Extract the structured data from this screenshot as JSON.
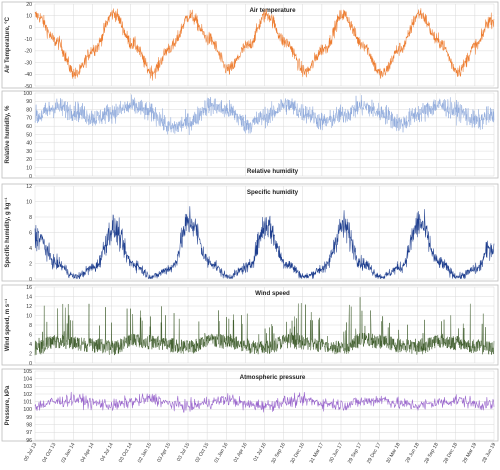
{
  "chart_data": [
    {
      "type": "line",
      "title": "Air temperature",
      "ylabel": "Air Temperature, °C",
      "ylim": [
        -50,
        20
      ],
      "yticks": [
        -50,
        -40,
        -30,
        -20,
        -10,
        0,
        10,
        20
      ],
      "grid": true,
      "color": "#ed7d31",
      "x_range": [
        "2013-07-05",
        "2019-07-05"
      ],
      "series": [
        {
          "x": [
            "2013-07",
            "2013-10",
            "2014-01",
            "2014-04",
            "2014-07",
            "2014-10",
            "2015-01",
            "2015-04",
            "2015-07",
            "2015-10",
            "2016-01",
            "2016-04",
            "2016-07",
            "2016-10",
            "2017-01",
            "2017-04",
            "2017-07",
            "2017-10",
            "2018-01",
            "2018-04",
            "2018-07",
            "2018-10",
            "2019-01",
            "2019-04",
            "2019-06"
          ],
          "values": [
            10,
            -12,
            -40,
            -18,
            12,
            -14,
            -38,
            -17,
            10,
            -10,
            -36,
            -16,
            11,
            -13,
            -38,
            -18,
            11,
            -14,
            -40,
            -18,
            12,
            -12,
            -37,
            -15,
            6
          ]
        }
      ]
    },
    {
      "type": "line",
      "title": "Relative humidity",
      "ylabel": "Relative humidity, %",
      "ylim": [
        0,
        100
      ],
      "yticks": [
        0,
        10,
        20,
        30,
        40,
        50,
        60,
        70,
        80,
        90,
        100
      ],
      "grid": true,
      "color": "#8faadc",
      "x_range": [
        "2013-07-05",
        "2019-07-05"
      ],
      "series": [
        {
          "x": [
            "2013-07",
            "2013-10",
            "2014-01",
            "2014-04",
            "2014-07",
            "2014-10",
            "2015-01",
            "2015-04",
            "2015-07",
            "2015-10",
            "2016-01",
            "2016-04",
            "2016-07",
            "2016-10",
            "2017-01",
            "2017-04",
            "2017-07",
            "2017-10",
            "2018-01",
            "2018-04",
            "2018-07",
            "2018-10",
            "2019-01",
            "2019-04",
            "2019-06"
          ],
          "values": [
            72,
            83,
            78,
            70,
            77,
            84,
            76,
            58,
            65,
            85,
            79,
            62,
            72,
            86,
            76,
            65,
            74,
            84,
            76,
            63,
            76,
            85,
            78,
            66,
            72
          ]
        }
      ]
    },
    {
      "type": "line",
      "title": "Specific humidity",
      "ylabel": "Specific humidity, g kg⁻¹",
      "ylim": [
        0,
        12
      ],
      "yticks": [
        0,
        2,
        4,
        6,
        8,
        10,
        12
      ],
      "grid": true,
      "color": "#1f3f8f",
      "x_range": [
        "2013-07-05",
        "2019-07-05"
      ],
      "series": [
        {
          "x": [
            "2013-07",
            "2013-10",
            "2014-01",
            "2014-04",
            "2014-07",
            "2014-10",
            "2015-01",
            "2015-04",
            "2015-07",
            "2015-10",
            "2016-01",
            "2016-04",
            "2016-07",
            "2016-10",
            "2017-01",
            "2017-04",
            "2017-07",
            "2017-10",
            "2018-01",
            "2018-04",
            "2018-07",
            "2018-10",
            "2019-01",
            "2019-04",
            "2019-06"
          ],
          "values": [
            5.5,
            2.0,
            0.3,
            1.5,
            6.5,
            2.0,
            0.3,
            1.4,
            7.5,
            2.2,
            0.3,
            1.5,
            7.0,
            2.0,
            0.3,
            1.4,
            6.8,
            2.0,
            0.3,
            1.5,
            7.2,
            2.1,
            0.3,
            1.3,
            4.0
          ]
        }
      ]
    },
    {
      "type": "line",
      "title": "Wind speed",
      "ylabel": "Wind speed, m s⁻¹",
      "ylim": [
        0,
        16
      ],
      "yticks": [
        0,
        2,
        4,
        6,
        8,
        10,
        12,
        14,
        16
      ],
      "grid": true,
      "color": "#375623",
      "x_range": [
        "2013-07-05",
        "2019-07-05"
      ],
      "series": [
        {
          "x": [
            "2013-07",
            "2013-10",
            "2014-01",
            "2014-04",
            "2014-07",
            "2014-10",
            "2015-01",
            "2015-04",
            "2015-07",
            "2015-10",
            "2016-01",
            "2016-04",
            "2016-07",
            "2016-10",
            "2017-01",
            "2017-04",
            "2017-07",
            "2017-10",
            "2018-01",
            "2018-04",
            "2018-07",
            "2018-10",
            "2019-01",
            "2019-04",
            "2019-06"
          ],
          "values": [
            3.0,
            4.5,
            4.0,
            3.5,
            3.0,
            4.8,
            4.2,
            3.6,
            3.1,
            4.6,
            4.3,
            3.4,
            3.0,
            4.5,
            4.1,
            3.5,
            2.9,
            4.7,
            4.4,
            3.5,
            3.1,
            4.6,
            4.0,
            3.3,
            3.0
          ]
        }
      ]
    },
    {
      "type": "line",
      "title": "Atmospheric pressure",
      "ylabel": "Pressure, kPa",
      "ylim": [
        96,
        105
      ],
      "yticks": [
        96,
        97,
        98,
        99,
        100,
        101,
        102,
        103,
        104,
        105
      ],
      "grid": true,
      "color": "#9966cc",
      "x_range": [
        "2013-07-05",
        "2019-07-05"
      ],
      "series": [
        {
          "x": [
            "2013-07",
            "2013-10",
            "2014-01",
            "2014-04",
            "2014-07",
            "2014-10",
            "2015-01",
            "2015-04",
            "2015-07",
            "2015-10",
            "2016-01",
            "2016-04",
            "2016-07",
            "2016-10",
            "2017-01",
            "2017-04",
            "2017-07",
            "2017-10",
            "2018-01",
            "2018-04",
            "2018-07",
            "2018-10",
            "2019-01",
            "2019-04",
            "2019-06"
          ],
          "values": [
            100.5,
            101.0,
            101.3,
            100.8,
            100.5,
            101.0,
            101.4,
            100.7,
            100.4,
            100.9,
            101.3,
            100.6,
            100.5,
            101.0,
            101.2,
            100.8,
            100.6,
            101.0,
            101.3,
            100.7,
            100.5,
            100.9,
            101.2,
            100.7,
            100.6
          ]
        }
      ]
    }
  ],
  "x_ticks": [
    "05 Jul 13",
    "04 Oct 13",
    "03 Jan 14",
    "04 Apr 14",
    "04 Jul 14",
    "03 Oct 14",
    "02 Jan 15",
    "03 Apr 15",
    "03 Jul 15",
    "02 Oct 15",
    "01 Jan 16",
    "01 Apr 16",
    "01 Jul 16",
    "30 Sep 16",
    "30 Dec 16",
    "31 Mar 17",
    "30 Jun 17",
    "29 Sep 17",
    "29 Dec 17",
    "30 Mar 18",
    "29 Jun 18",
    "28 Sep 18",
    "28 Dec 18",
    "29 Mar 19",
    "28 Jun 19"
  ]
}
